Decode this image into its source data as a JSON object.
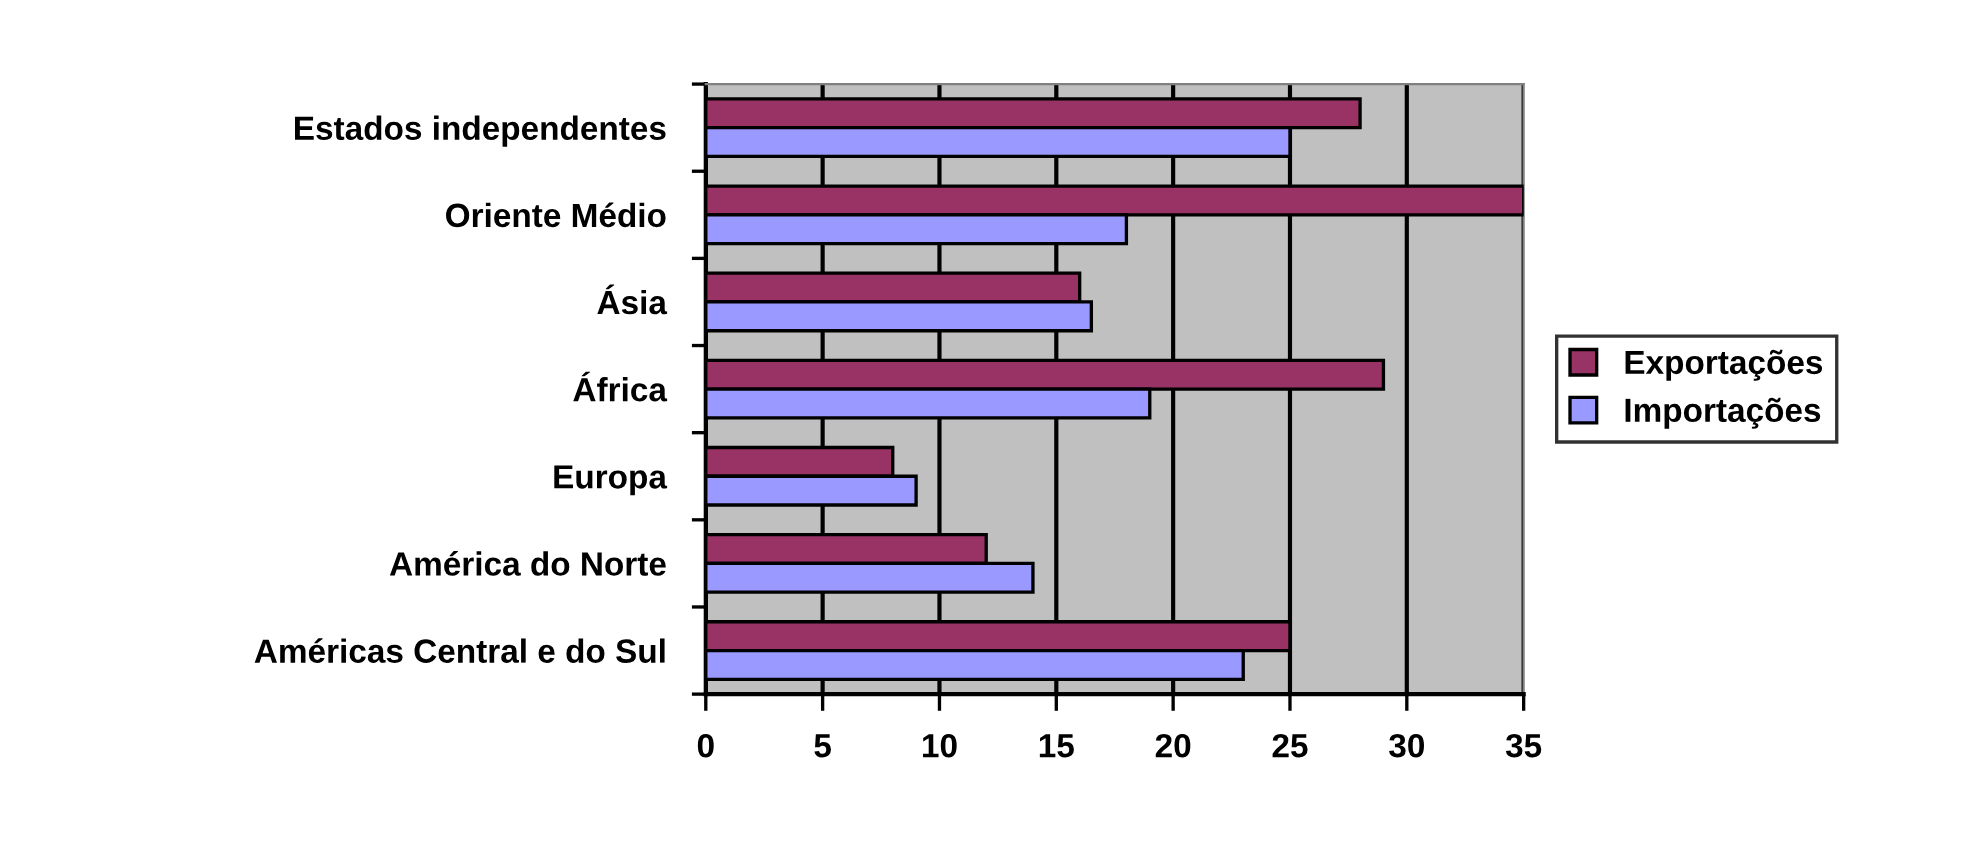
{
  "chart_data": {
    "type": "bar",
    "orientation": "horizontal",
    "categories": [
      "Estados independentes",
      "Oriente Médio",
      "Ásia",
      "África",
      "Europa",
      "América do Norte",
      "Américas Central e do Sul"
    ],
    "series": [
      {
        "name": "Exportações",
        "color": "#993366",
        "values": [
          28,
          35,
          16,
          29,
          8,
          12,
          25
        ]
      },
      {
        "name": "Importações",
        "color": "#9999ff",
        "values": [
          25,
          18,
          16.5,
          19,
          9,
          14,
          23
        ]
      }
    ],
    "xlim": [
      0,
      35
    ],
    "xticks": [
      0,
      5,
      10,
      15,
      20,
      25,
      30,
      35
    ],
    "grid": "x",
    "legend": "right"
  }
}
